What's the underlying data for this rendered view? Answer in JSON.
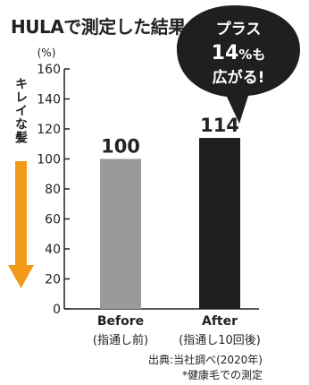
{
  "chart_data": {
    "type": "bar",
    "title": "HULAで測定した結果",
    "ylabel": "(%)",
    "ylim": [
      0,
      160
    ],
    "yticks": [
      0,
      20,
      40,
      60,
      80,
      100,
      120,
      140,
      160
    ],
    "categories": [
      {
        "line1": "Before",
        "line2": "(指通し前)"
      },
      {
        "line1": "After",
        "line2": "(指通し10回後)"
      }
    ],
    "values": [
      100,
      114
    ],
    "value_labels": [
      "100",
      "114"
    ],
    "bar_colors": [
      "#9a9a9a",
      "#1f1f1f"
    ],
    "side_label": "キレイな髪",
    "arrow_color": "#f29a1a",
    "callout": {
      "line1": "プラス",
      "line2_number": "14",
      "line2_unit": "%も",
      "line3": "広がる!",
      "color": "#1f1f1f"
    },
    "footnotes": [
      "出典:当社調べ(2020年)",
      "*健康毛での測定"
    ]
  }
}
